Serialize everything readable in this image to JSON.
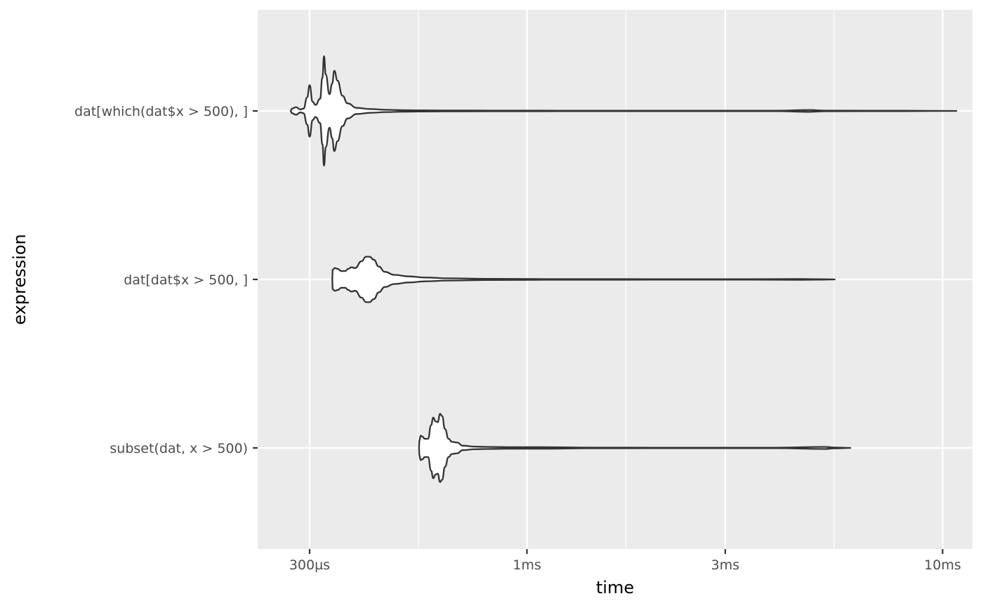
{
  "chart_data": {
    "type": "violin",
    "orientation": "horizontal",
    "xlabel": "time",
    "ylabel": "expression",
    "x_scale": "log10",
    "x_unit": "seconds",
    "xlim": [
      0.000225,
      0.0118
    ],
    "x_ticks": [
      {
        "value": 0.0003,
        "label": "300µs"
      },
      {
        "value": 0.001,
        "label": "1ms"
      },
      {
        "value": 0.003,
        "label": "3ms"
      },
      {
        "value": 0.01,
        "label": "10ms"
      }
    ],
    "x_minor_ticks": [
      0.000548,
      0.00173,
      0.00548
    ],
    "grid": true,
    "categories": [
      "dat[which(dat$x > 500), ]",
      "dat[dat$x > 500, ]",
      "subset(dat, x > 500)"
    ],
    "series": [
      {
        "category": "dat[which(dat$x > 500), ]",
        "min": 0.00027,
        "max": 0.0108,
        "density_profile": [
          {
            "x": 0.00027,
            "w": 0.0
          },
          {
            "x": 0.000272,
            "w": 0.03
          },
          {
            "x": 0.000278,
            "w": 0.05
          },
          {
            "x": 0.000285,
            "w": 0.02
          },
          {
            "x": 0.00029,
            "w": 0.03
          },
          {
            "x": 0.000296,
            "w": 0.18
          },
          {
            "x": 0.0003,
            "w": 0.34
          },
          {
            "x": 0.000305,
            "w": 0.12
          },
          {
            "x": 0.00031,
            "w": 0.08
          },
          {
            "x": 0.000318,
            "w": 0.16
          },
          {
            "x": 0.000322,
            "w": 0.44
          },
          {
            "x": 0.000325,
            "w": 0.72
          },
          {
            "x": 0.000328,
            "w": 0.48
          },
          {
            "x": 0.000335,
            "w": 0.22
          },
          {
            "x": 0.00034,
            "w": 0.36
          },
          {
            "x": 0.000344,
            "w": 0.53
          },
          {
            "x": 0.00035,
            "w": 0.4
          },
          {
            "x": 0.00036,
            "w": 0.2
          },
          {
            "x": 0.00037,
            "w": 0.1
          },
          {
            "x": 0.00039,
            "w": 0.04
          },
          {
            "x": 0.00042,
            "w": 0.025
          },
          {
            "x": 0.00046,
            "w": 0.015
          },
          {
            "x": 0.0005,
            "w": 0.01
          },
          {
            "x": 0.00055,
            "w": 0.008
          },
          {
            "x": 0.00065,
            "w": 0.006
          },
          {
            "x": 0.0008,
            "w": 0.005
          },
          {
            "x": 0.0012,
            "w": 0.004
          },
          {
            "x": 0.002,
            "w": 0.004
          },
          {
            "x": 0.004,
            "w": 0.004
          },
          {
            "x": 0.0048,
            "w": 0.012
          },
          {
            "x": 0.0052,
            "w": 0.005
          },
          {
            "x": 0.008,
            "w": 0.003
          },
          {
            "x": 0.0108,
            "w": 0.0
          }
        ]
      },
      {
        "category": "dat[dat$x > 500, ]",
        "min": 0.00034,
        "max": 0.0055,
        "density_profile": [
          {
            "x": 0.00034,
            "w": 0.0
          },
          {
            "x": 0.000341,
            "w": 0.13
          },
          {
            "x": 0.000345,
            "w": 0.15
          },
          {
            "x": 0.00035,
            "w": 0.14
          },
          {
            "x": 0.000358,
            "w": 0.11
          },
          {
            "x": 0.000365,
            "w": 0.11
          },
          {
            "x": 0.000372,
            "w": 0.14
          },
          {
            "x": 0.000378,
            "w": 0.16
          },
          {
            "x": 0.000386,
            "w": 0.15
          },
          {
            "x": 0.0004,
            "w": 0.24
          },
          {
            "x": 0.00041,
            "w": 0.3
          },
          {
            "x": 0.000418,
            "w": 0.3
          },
          {
            "x": 0.000428,
            "w": 0.26
          },
          {
            "x": 0.00044,
            "w": 0.17
          },
          {
            "x": 0.000455,
            "w": 0.1
          },
          {
            "x": 0.00048,
            "w": 0.06
          },
          {
            "x": 0.00052,
            "w": 0.04
          },
          {
            "x": 0.00057,
            "w": 0.025
          },
          {
            "x": 0.00065,
            "w": 0.015
          },
          {
            "x": 0.0008,
            "w": 0.008
          },
          {
            "x": 0.0011,
            "w": 0.005
          },
          {
            "x": 0.002,
            "w": 0.004
          },
          {
            "x": 0.0035,
            "w": 0.004
          },
          {
            "x": 0.0045,
            "w": 0.006
          },
          {
            "x": 0.005,
            "w": 0.004
          },
          {
            "x": 0.0055,
            "w": 0.0
          }
        ]
      },
      {
        "category": "subset(dat, x > 500)",
        "min": 0.00055,
        "max": 0.006,
        "density_profile": [
          {
            "x": 0.00055,
            "w": 0.0
          },
          {
            "x": 0.000551,
            "w": 0.1
          },
          {
            "x": 0.000555,
            "w": 0.16
          },
          {
            "x": 0.00056,
            "w": 0.15
          },
          {
            "x": 0.000568,
            "w": 0.12
          },
          {
            "x": 0.000578,
            "w": 0.12
          },
          {
            "x": 0.000588,
            "w": 0.3
          },
          {
            "x": 0.000595,
            "w": 0.4
          },
          {
            "x": 0.000603,
            "w": 0.35
          },
          {
            "x": 0.00061,
            "w": 0.34
          },
          {
            "x": 0.000618,
            "w": 0.45
          },
          {
            "x": 0.000625,
            "w": 0.42
          },
          {
            "x": 0.000635,
            "w": 0.25
          },
          {
            "x": 0.000648,
            "w": 0.12
          },
          {
            "x": 0.00066,
            "w": 0.08
          },
          {
            "x": 0.00068,
            "w": 0.07
          },
          {
            "x": 0.0007,
            "w": 0.03
          },
          {
            "x": 0.00075,
            "w": 0.018
          },
          {
            "x": 0.0008,
            "w": 0.014
          },
          {
            "x": 0.0009,
            "w": 0.01
          },
          {
            "x": 0.0011,
            "w": 0.01
          },
          {
            "x": 0.0014,
            "w": 0.005
          },
          {
            "x": 0.002,
            "w": 0.004
          },
          {
            "x": 0.004,
            "w": 0.004
          },
          {
            "x": 0.0052,
            "w": 0.014
          },
          {
            "x": 0.0055,
            "w": 0.006
          },
          {
            "x": 0.006,
            "w": 0.0
          }
        ]
      }
    ]
  }
}
